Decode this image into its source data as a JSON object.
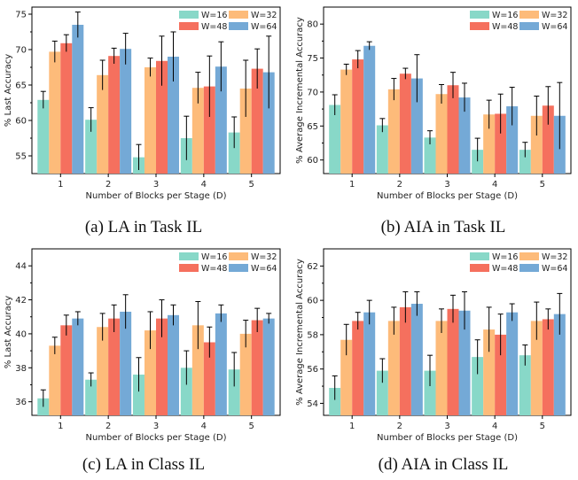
{
  "colors": {
    "W=16": "#88d8c8",
    "W=32": "#fdbb7a",
    "W=48": "#f5705e",
    "W=64": "#74a9d6"
  },
  "chart_data": [
    {
      "type": "bar",
      "caption": "(a) LA in Task IL",
      "xlabel": "Number of Blocks per Stage (D)",
      "ylabel": "% Last Accuracy",
      "categories": [
        "1",
        "2",
        "3",
        "4",
        "5"
      ],
      "ylim": [
        52.5,
        76
      ],
      "yticks": [
        55,
        60,
        65,
        70,
        75
      ],
      "legend": "top-right",
      "series": [
        {
          "name": "W=16",
          "values": [
            62.9,
            60.1,
            54.8,
            57.5,
            58.3
          ],
          "err": [
            1.2,
            1.7,
            1.8,
            3.1,
            2.2
          ]
        },
        {
          "name": "W=32",
          "values": [
            69.7,
            66.4,
            67.5,
            64.6,
            64.5
          ],
          "err": [
            1.5,
            2.1,
            1.3,
            2.2,
            4.0
          ]
        },
        {
          "name": "W=48",
          "values": [
            70.9,
            69.1,
            68.4,
            64.8,
            67.3
          ],
          "err": [
            1.2,
            1.1,
            3.5,
            4.3,
            2.8
          ]
        },
        {
          "name": "W=64",
          "values": [
            73.5,
            70.1,
            69.0,
            67.6,
            66.8
          ],
          "err": [
            1.8,
            2.2,
            3.5,
            3.5,
            5.1
          ]
        }
      ]
    },
    {
      "type": "bar",
      "caption": "(b) AIA in Task IL",
      "xlabel": "Number of Blocks per Stage (D)",
      "ylabel": "% Average Incremental Accuracy",
      "categories": [
        "1",
        "2",
        "3",
        "4",
        "5"
      ],
      "ylim": [
        58,
        82.5
      ],
      "yticks": [
        60,
        65,
        70,
        75,
        80
      ],
      "legend": "top-right",
      "series": [
        {
          "name": "W=16",
          "values": [
            68.1,
            65.1,
            63.3,
            61.5,
            61.5
          ],
          "err": [
            1.5,
            1.0,
            1.0,
            1.7,
            1.1
          ]
        },
        {
          "name": "W=32",
          "values": [
            73.3,
            70.4,
            69.7,
            66.7,
            66.5
          ],
          "err": [
            0.8,
            1.6,
            1.4,
            2.1,
            2.9
          ]
        },
        {
          "name": "W=48",
          "values": [
            74.8,
            72.7,
            71.0,
            66.8,
            68.0
          ],
          "err": [
            1.3,
            0.8,
            1.9,
            2.9,
            2.8
          ]
        },
        {
          "name": "W=64",
          "values": [
            76.8,
            72.0,
            69.2,
            67.9,
            66.5
          ],
          "err": [
            0.6,
            3.5,
            2.1,
            2.8,
            4.9
          ]
        }
      ]
    },
    {
      "type": "bar",
      "caption": "(c) LA in Class IL",
      "xlabel": "Number of Blocks per Stage (D)",
      "ylabel": "% Last Accuracy",
      "categories": [
        "1",
        "2",
        "3",
        "4",
        "5"
      ],
      "ylim": [
        35.2,
        45
      ],
      "yticks": [
        36,
        38,
        40,
        42,
        44
      ],
      "legend": "top-right",
      "series": [
        {
          "name": "W=16",
          "values": [
            36.2,
            37.3,
            37.6,
            38.0,
            37.9
          ],
          "err": [
            0.5,
            0.4,
            1.0,
            1.0,
            1.0
          ]
        },
        {
          "name": "W=32",
          "values": [
            39.3,
            40.4,
            40.2,
            40.5,
            40.0
          ],
          "err": [
            0.5,
            0.8,
            1.1,
            1.4,
            0.8
          ]
        },
        {
          "name": "W=48",
          "values": [
            40.5,
            40.9,
            40.9,
            39.5,
            40.8
          ],
          "err": [
            0.6,
            0.8,
            1.1,
            0.9,
            0.7
          ]
        },
        {
          "name": "W=64",
          "values": [
            40.9,
            41.3,
            41.1,
            41.2,
            40.9
          ],
          "err": [
            0.4,
            1.0,
            0.6,
            0.5,
            0.3
          ]
        }
      ]
    },
    {
      "type": "bar",
      "caption": "(d) AIA in Class IL",
      "xlabel": "Number of Blocks per Stage (D)",
      "ylabel": "% Average Incremental Accuracy",
      "categories": [
        "1",
        "2",
        "3",
        "4",
        "5"
      ],
      "ylim": [
        53.3,
        63
      ],
      "yticks": [
        54,
        56,
        58,
        60,
        62
      ],
      "legend": "top-right",
      "series": [
        {
          "name": "W=16",
          "values": [
            54.9,
            55.9,
            55.9,
            56.7,
            56.8
          ],
          "err": [
            0.7,
            0.7,
            0.9,
            1.0,
            0.6
          ]
        },
        {
          "name": "W=32",
          "values": [
            57.7,
            58.8,
            58.8,
            58.3,
            58.8
          ],
          "err": [
            0.9,
            0.8,
            0.7,
            1.3,
            1.1
          ]
        },
        {
          "name": "W=48",
          "values": [
            58.8,
            59.6,
            59.5,
            58.0,
            58.9
          ],
          "err": [
            0.5,
            0.9,
            0.8,
            1.2,
            0.6
          ]
        },
        {
          "name": "W=64",
          "values": [
            59.3,
            59.8,
            59.4,
            59.3,
            59.2
          ],
          "err": [
            0.7,
            0.7,
            1.1,
            0.5,
            1.2
          ]
        }
      ]
    }
  ]
}
